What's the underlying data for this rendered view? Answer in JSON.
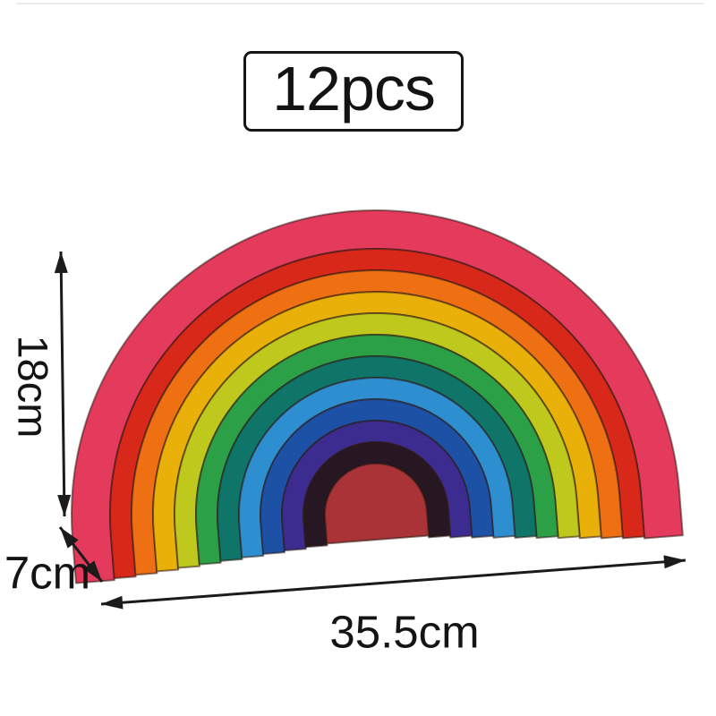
{
  "badge": {
    "text": "12pcs"
  },
  "dimensions": {
    "height": "18cm",
    "depth": "7cm",
    "width": "35.5cm"
  },
  "colors": {
    "annotation": "#1b1b1b",
    "background": "#ffffff",
    "piece_outline": "#2b1712"
  },
  "rainbow": {
    "description": "wooden rainbow arch stacker toy",
    "pieces_count": 12,
    "pieces": [
      {
        "name": "arch-01-pink-red",
        "color": "#e43a5c"
      },
      {
        "name": "arch-02-red",
        "color": "#d8281a"
      },
      {
        "name": "arch-03-orange",
        "color": "#ee7013"
      },
      {
        "name": "arch-04-golden-yellow",
        "color": "#e9b00a"
      },
      {
        "name": "arch-05-yellow-green",
        "color": "#bec81d"
      },
      {
        "name": "arch-06-green",
        "color": "#2ca047"
      },
      {
        "name": "arch-07-teal",
        "color": "#0e7568"
      },
      {
        "name": "arch-08-light-blue",
        "color": "#2e8fd0"
      },
      {
        "name": "arch-09-blue",
        "color": "#1c51a6"
      },
      {
        "name": "arch-10-indigo",
        "color": "#3c2c90"
      },
      {
        "name": "arch-11-dark-plum",
        "color": "#271723"
      },
      {
        "name": "piece-12-center-half-disc",
        "color": "#a93336"
      }
    ]
  }
}
